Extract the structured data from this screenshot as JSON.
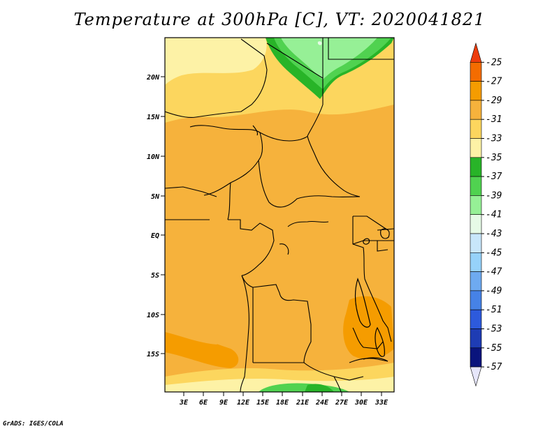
{
  "title": "Temperature at 300hPa [C], VT: 2020041821",
  "credit": "GrADS: IGES/COLA",
  "axes": {
    "lat_labels": [
      "20N",
      "15N",
      "10N",
      "5N",
      "EQ",
      "5S",
      "10S",
      "15S"
    ],
    "lon_labels": [
      "3E",
      "6E",
      "9E",
      "12E",
      "15E",
      "18E",
      "21E",
      "24E",
      "27E",
      "30E",
      "33E"
    ]
  },
  "colorbar": {
    "labels": [
      "-25",
      "-27",
      "-29",
      "-31",
      "-33",
      "-35",
      "-37",
      "-39",
      "-41",
      "-43",
      "-45",
      "-47",
      "-49",
      "-51",
      "-53",
      "-55",
      "-57"
    ],
    "colors": [
      "#ee3c0c",
      "#f46c00",
      "#f59c00",
      "#f6b23c",
      "#fcd65e",
      "#fdf2a6",
      "#28b428",
      "#50d250",
      "#96f096",
      "#e6fae6",
      "#c8e6fa",
      "#96d2fa",
      "#6eaaf0",
      "#4682e6",
      "#2d5adc",
      "#1e3cb4",
      "#0a147d",
      "#e6e6fa"
    ]
  }
}
